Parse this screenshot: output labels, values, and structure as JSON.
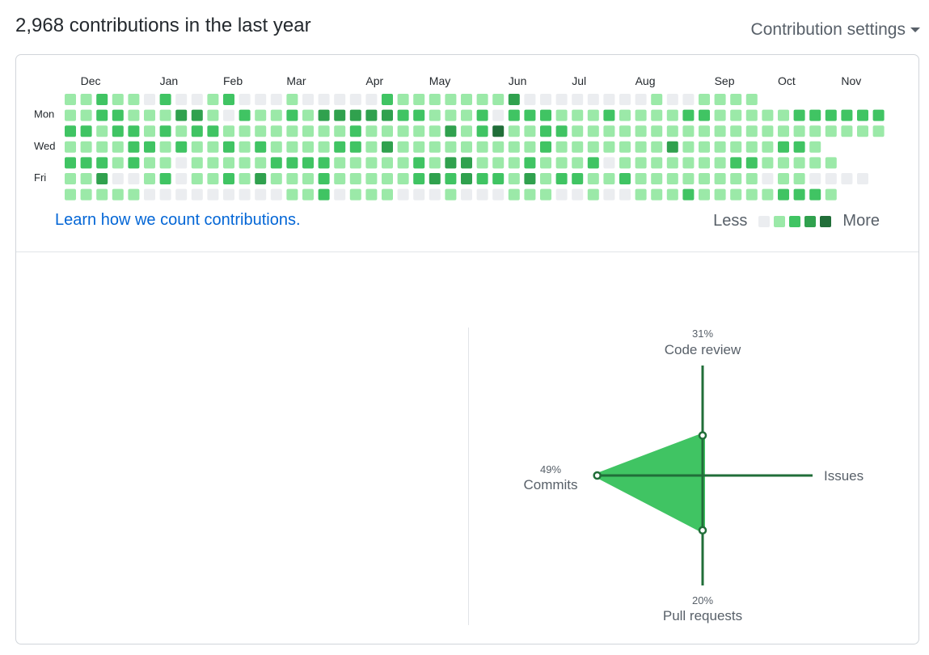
{
  "header": {
    "title": "2,968 contributions in the last year",
    "settings_label": "Contribution settings"
  },
  "calendar": {
    "months": [
      "Dec",
      "Jan",
      "Feb",
      "Mar",
      "Apr",
      "May",
      "Jun",
      "Jul",
      "Aug",
      "Sep",
      "Oct",
      "Nov"
    ],
    "month_weeks": [
      1,
      6,
      10,
      14,
      19,
      23,
      28,
      32,
      36,
      41,
      45,
      49
    ],
    "day_labels": [
      "Mon",
      "Wed",
      "Fri"
    ],
    "day_label_rows": [
      1,
      3,
      5
    ],
    "colors": [
      "#ebedf0",
      "#9be9a8",
      "#40c463",
      "#30a14e",
      "#216e39"
    ],
    "levels": "11211020012000100000211111113000000001001111\n1122111331021121333332211120222111211112211111222222\n2212212122111111112111113124112211111111111111111111\n111122121121211112213111111111211111113111111221\n2221211011111222211111213311121112011111112211111\n113001201121311121111123232213122112111111110110000\n1111100000000011201110001000111001001112111112221\n",
    "learn_link": "Learn how we count contributions.",
    "legend_less": "Less",
    "legend_more": "More"
  },
  "activity": {
    "code_review": {
      "label": "Code review",
      "percent": 31,
      "percent_text": "31%"
    },
    "commits": {
      "label": "Commits",
      "percent": 49,
      "percent_text": "49%"
    },
    "pull_requests": {
      "label": "Pull requests",
      "percent": 20,
      "percent_text": "20%"
    },
    "issues": {
      "label": "Issues",
      "percent": 0,
      "percent_text": ""
    },
    "fill_color": "#40c463",
    "axis_color": "#216e39"
  }
}
